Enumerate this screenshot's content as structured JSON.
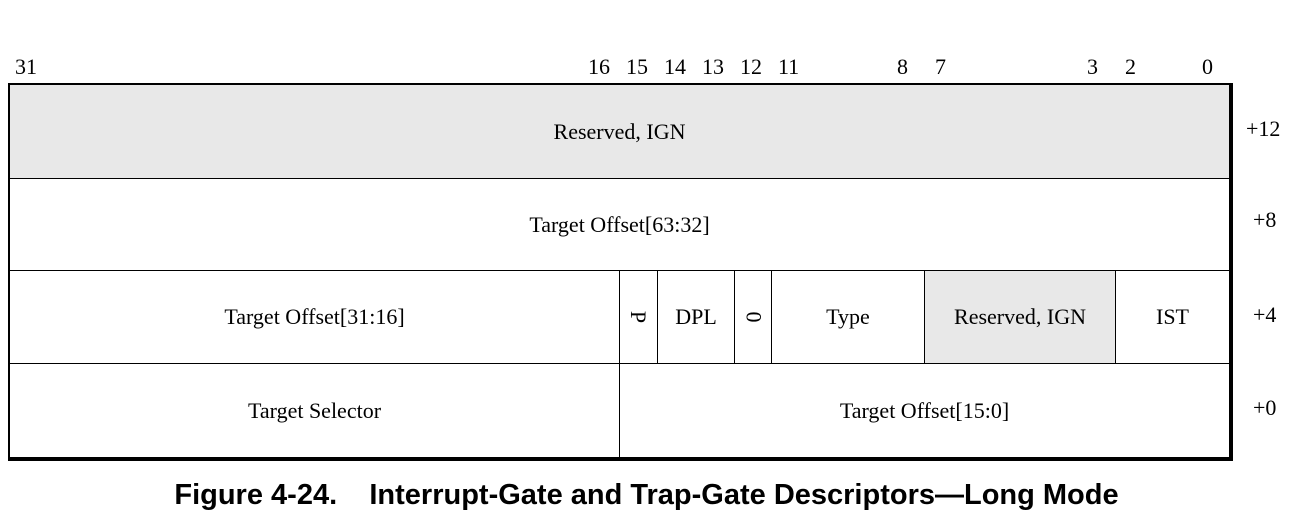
{
  "bit_numbers": [
    "31",
    "16",
    "15",
    "14",
    "13",
    "12",
    "11",
    "8",
    "7",
    "3",
    "2",
    "0"
  ],
  "rows": {
    "row12": {
      "field": "Reserved, IGN",
      "offset": "+12"
    },
    "row8": {
      "field": "Target Offset[63:32]",
      "offset": "+8"
    },
    "row4": {
      "fields": [
        "Target Offset[31:16]",
        "P",
        "DPL",
        "0",
        "Type",
        "Reserved, IGN",
        "IST"
      ],
      "offset": "+4"
    },
    "row0": {
      "fields": [
        "Target Selector",
        "Target Offset[15:0]"
      ],
      "offset": "+0"
    }
  },
  "caption": {
    "number": "Figure 4-24.",
    "title": "Interrupt-Gate and Trap-Gate Descriptors—Long Mode"
  },
  "colors": {
    "reserved_fill": "#e8e8e8",
    "line": "#000000"
  }
}
